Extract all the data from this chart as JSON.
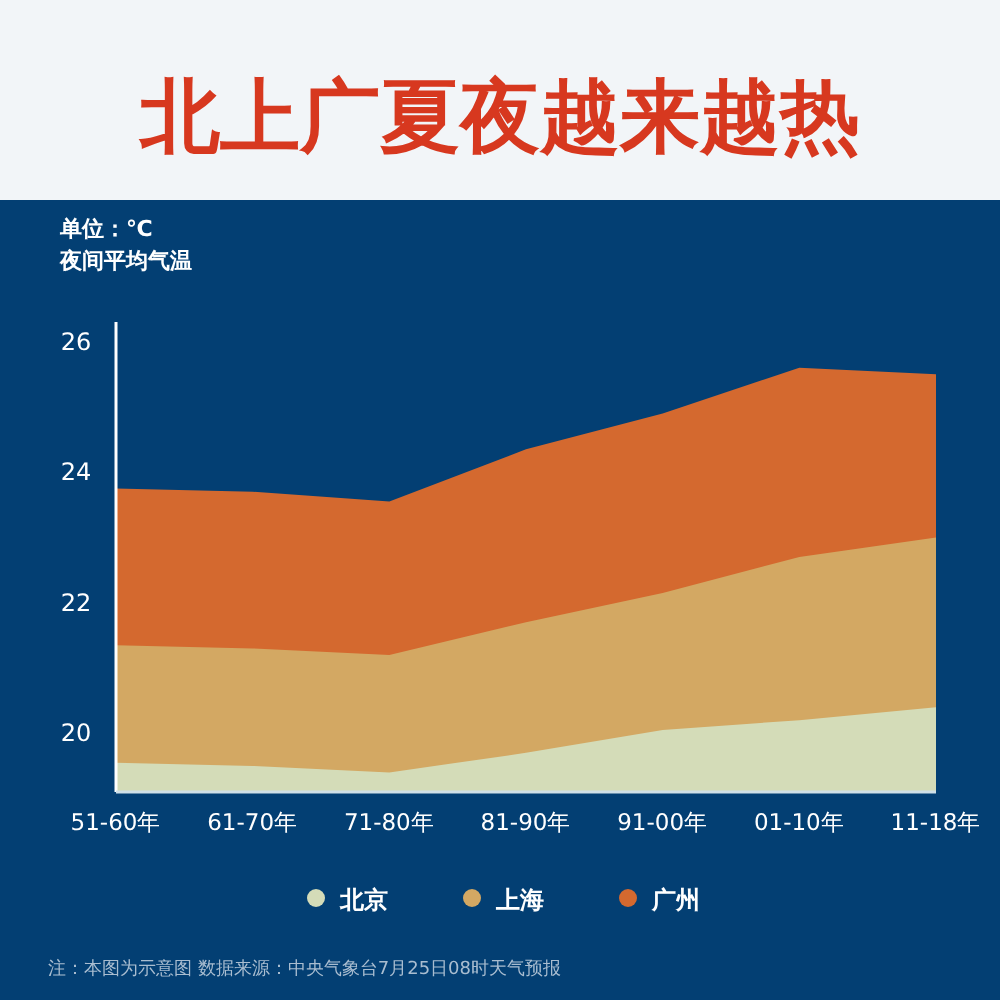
{
  "chart_data": {
    "type": "area",
    "title": "北上广夏夜越来越热",
    "xlabel": null,
    "ylabel": "夜间平均气温",
    "subtitle": "单位：℃",
    "categories": [
      "51-60年",
      "61-70年",
      "71-80年",
      "81-90年",
      "91-00年",
      "01-10年",
      "11-18年"
    ],
    "series": [
      {
        "name": "北京",
        "color": "#d4dcb8",
        "values": [
          19.55,
          19.5,
          19.4,
          19.7,
          20.05,
          20.2,
          20.4
        ]
      },
      {
        "name": "上海",
        "color": "#d3a863",
        "values": [
          21.35,
          21.3,
          21.2,
          21.7,
          22.15,
          22.7,
          23.0
        ]
      },
      {
        "name": "广州",
        "color": "#d4692f",
        "values": [
          23.75,
          23.7,
          23.55,
          24.35,
          24.9,
          25.6,
          25.5
        ]
      }
    ],
    "ylim": [
      19.1,
      26.3
    ],
    "yticks": [
      20,
      22,
      24,
      26
    ],
    "grid": false,
    "legend": "bottom",
    "annotations": [
      "注：本图为示意图 数据来源：中央气象台7月25日08时天气预报"
    ]
  }
}
